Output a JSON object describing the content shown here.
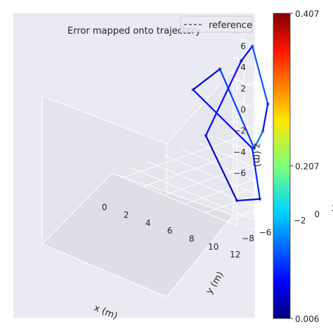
{
  "chart_data": {
    "type": "line",
    "projection": "3d",
    "title": "Error mapped onto trajectory",
    "legend": {
      "entries": [
        "reference"
      ],
      "placement": "top-right"
    },
    "grid": true,
    "axes": {
      "x": {
        "label": "x (m)",
        "ticks": [
          "0",
          "2",
          "4",
          "6",
          "8",
          "10",
          "12"
        ]
      },
      "y": {
        "label": "y (m)",
        "ticks": [
          "−8",
          "−6",
          "−4",
          "−2",
          "0",
          "2",
          "4",
          "6"
        ]
      },
      "z": {
        "label": "z (m)",
        "ticks": [
          "−6",
          "−4",
          "−2",
          "0",
          "2",
          "4",
          "6"
        ]
      }
    },
    "colorbar": {
      "colormap": "jet",
      "range": [
        0.006,
        0.407
      ],
      "tick_labels": [
        "0.407",
        "0.207",
        "0.006"
      ]
    },
    "series": [
      {
        "name": "reference",
        "style": "dashed",
        "color": "#555555",
        "points_xyz": [
          [
            0.2,
            5.5,
            0.3
          ],
          [
            1.1,
            5.7,
            2.0
          ],
          [
            9.0,
            -2.0,
            2.0
          ],
          [
            10.1,
            -3.9,
            0.4
          ],
          [
            9.6,
            -4.3,
            -1.3
          ],
          [
            0.3,
            2.9,
            0.3
          ],
          [
            -0.8,
            1.1,
            -1.6
          ],
          [
            9.5,
            -4.4,
            -1.3
          ],
          [
            10.9,
            -5.2,
            -5.3
          ],
          [
            10.1,
            -6.9,
            -5.3
          ],
          [
            0.6,
            0.9,
            -5.3
          ],
          [
            0.2,
            5.5,
            0.3
          ]
        ]
      },
      {
        "name": "",
        "style": "colored",
        "color": "#1a40ff",
        "error_values": [
          0.05,
          0.09,
          0.06,
          0.1,
          0.08,
          0.04,
          0.06,
          0.07,
          0.05,
          0.03,
          0.06,
          0.05
        ]
      }
    ]
  }
}
